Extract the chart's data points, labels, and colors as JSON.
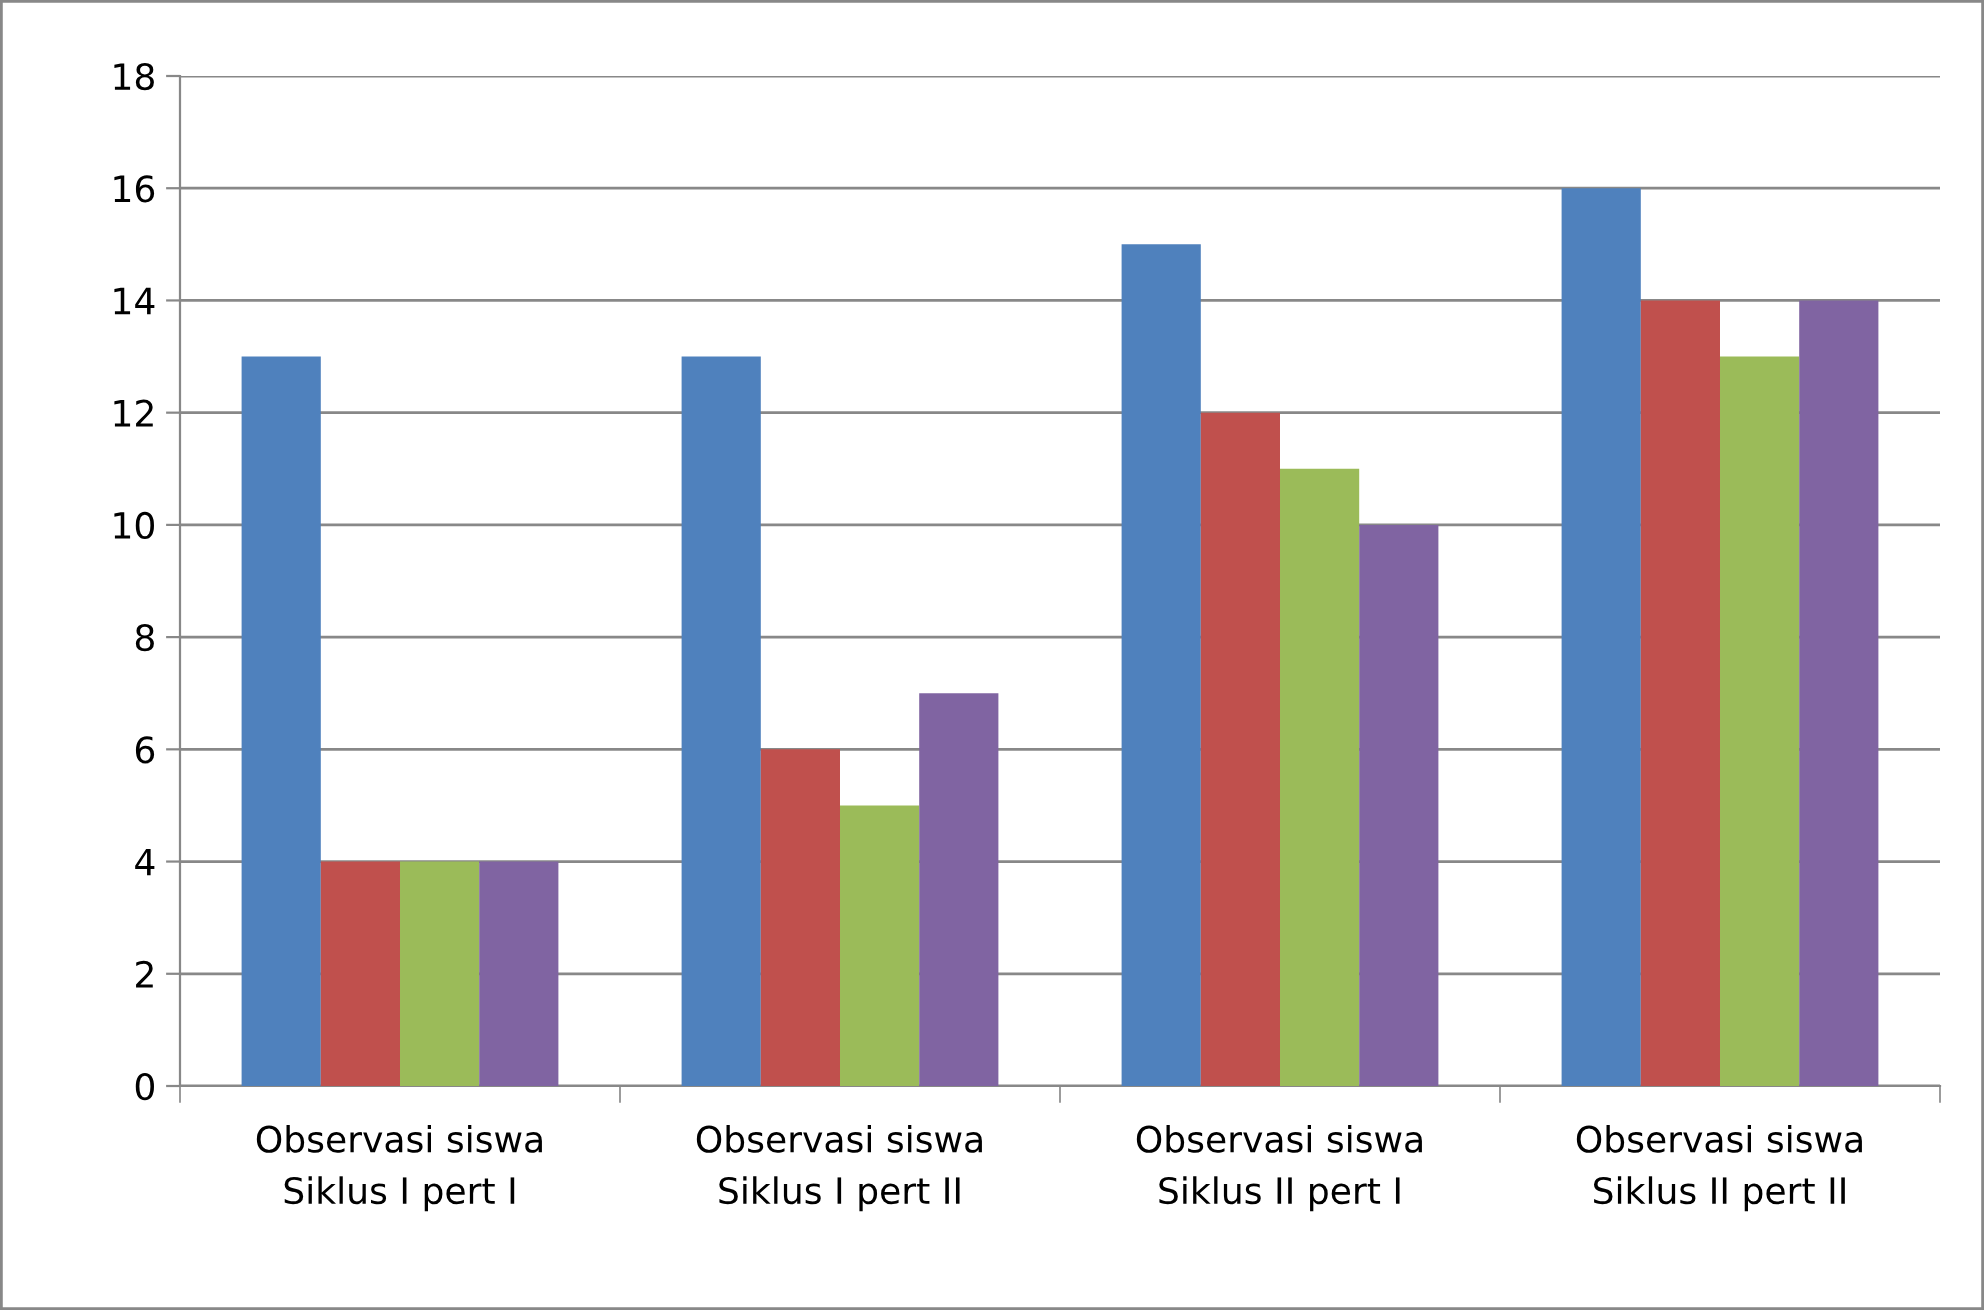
{
  "chart_data": {
    "type": "bar",
    "categories": [
      "Observasi siswa\nSiklus I pert I",
      "Observasi siswa\nSiklus I pert II",
      "Observasi siswa\nSiklus II pert I",
      "Observasi siswa\nSiklus II pert II"
    ],
    "series": [
      {
        "color": "#4f81bd",
        "values": [
          13,
          13,
          15,
          16
        ]
      },
      {
        "color": "#c0504d",
        "values": [
          4,
          6,
          12,
          14
        ]
      },
      {
        "color": "#9bbb59",
        "values": [
          4,
          5,
          11,
          13
        ]
      },
      {
        "color": "#8064a2",
        "values": [
          4,
          7,
          10,
          14
        ]
      }
    ],
    "ylim": [
      0,
      18
    ],
    "yticks": [
      0,
      2,
      4,
      6,
      8,
      10,
      12,
      14,
      16,
      18
    ],
    "grid": "y",
    "legend": false
  }
}
